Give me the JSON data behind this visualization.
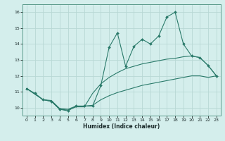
{
  "x": [
    0,
    1,
    2,
    3,
    4,
    5,
    6,
    7,
    8,
    9,
    10,
    11,
    12,
    13,
    14,
    15,
    16,
    17,
    18,
    19,
    20,
    21,
    22,
    23
  ],
  "line_main": [
    11.2,
    10.9,
    10.5,
    10.4,
    9.9,
    9.8,
    10.1,
    10.1,
    10.1,
    11.4,
    13.8,
    14.7,
    12.6,
    13.85,
    14.3,
    14.0,
    14.5,
    15.7,
    16.0,
    14.0,
    13.25,
    13.15,
    12.65,
    12.0
  ],
  "line_upper": [
    11.2,
    10.85,
    10.5,
    10.4,
    9.9,
    9.85,
    10.05,
    10.05,
    10.9,
    11.5,
    11.9,
    12.2,
    12.45,
    12.6,
    12.75,
    12.85,
    12.95,
    13.05,
    13.1,
    13.2,
    13.25,
    13.15,
    12.65,
    12.0
  ],
  "line_lower": [
    11.2,
    10.85,
    10.5,
    10.45,
    9.95,
    9.9,
    10.1,
    10.1,
    10.15,
    10.5,
    10.75,
    10.95,
    11.1,
    11.25,
    11.4,
    11.5,
    11.6,
    11.7,
    11.8,
    11.9,
    12.0,
    12.0,
    11.9,
    12.0
  ],
  "bg_color": "#d4eeec",
  "grid_color": "#b8d8d5",
  "line_color": "#2a7a6a",
  "xlim": [
    -0.5,
    23.5
  ],
  "ylim": [
    9.5,
    16.5
  ],
  "yticks": [
    10,
    11,
    12,
    13,
    14,
    15,
    16
  ],
  "xticks": [
    0,
    1,
    2,
    3,
    4,
    5,
    6,
    7,
    8,
    9,
    10,
    11,
    12,
    13,
    14,
    15,
    16,
    17,
    18,
    19,
    20,
    21,
    22,
    23
  ],
  "xlabel": "Humidex (Indice chaleur)"
}
